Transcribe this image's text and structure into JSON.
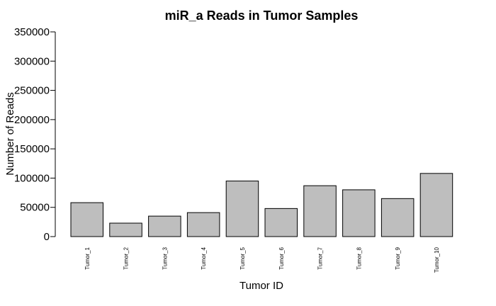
{
  "chart_data": {
    "type": "bar",
    "title": "miR_a Reads in Tumor Samples",
    "xlabel": "Tumor ID",
    "ylabel": "Number of Reads",
    "categories": [
      "Tumor_1",
      "Tumor_2",
      "Tumor_3",
      "Tumor_4",
      "Tumor_5",
      "Tumor_6",
      "Tumor_7",
      "Tumor_8",
      "Tumor_9",
      "Tumor_10"
    ],
    "values": [
      58000,
      23000,
      35000,
      41000,
      95000,
      48000,
      87000,
      80000,
      65000,
      108000
    ],
    "ylim": [
      0,
      350000
    ],
    "yticks": [
      "0",
      "50000",
      "100000",
      "150000",
      "200000",
      "250000",
      "300000",
      "350000"
    ],
    "grid": false,
    "bar_color": "#bebebe",
    "bar_edge_color": "#000000"
  }
}
